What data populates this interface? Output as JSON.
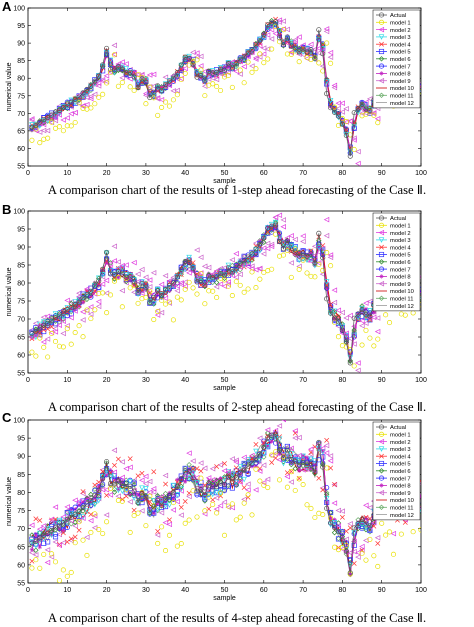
{
  "panels": [
    {
      "letter": "A",
      "caption": "A comparison chart of the results of 1-step ahead forecasting of the Case Ⅱ.",
      "chart_data": {
        "type": "line",
        "xlabel": "sample",
        "ylabel": "numerical value",
        "xlim": [
          0,
          100
        ],
        "ylim": [
          55,
          100
        ],
        "xticks": [
          0,
          10,
          20,
          30,
          40,
          50,
          60,
          70,
          80,
          90,
          100
        ],
        "yticks": [
          55,
          60,
          65,
          70,
          75,
          80,
          85,
          90,
          95,
          100
        ],
        "legend": [
          "Actual",
          "model 1",
          "model 2",
          "model 3",
          "model 4",
          "model 5",
          "model 6",
          "model 7",
          "model 8",
          "model 9",
          "model 10",
          "model 11",
          "model 12"
        ],
        "legend_position": "right",
        "spread": 3,
        "worst_models": [
          1,
          2,
          9
        ]
      }
    },
    {
      "letter": "B",
      "caption": "A comparison chart of the results of 2-step ahead forecasting of the Case Ⅱ.",
      "chart_data": {
        "type": "line",
        "xlabel": "sample",
        "ylabel": "numerical value",
        "xlim": [
          0,
          100
        ],
        "ylim": [
          55,
          100
        ],
        "xticks": [
          0,
          10,
          20,
          30,
          40,
          50,
          60,
          70,
          80,
          90,
          100
        ],
        "yticks": [
          55,
          60,
          65,
          70,
          75,
          80,
          85,
          90,
          95,
          100
        ],
        "legend": [
          "Actual",
          "model 1",
          "model 2",
          "model 3",
          "model 4",
          "model 5",
          "model 6",
          "model 7",
          "model 8",
          "model 9",
          "model 10",
          "model 11",
          "model 12"
        ],
        "legend_position": "right",
        "spread": 5,
        "worst_models": [
          1,
          2,
          9
        ]
      }
    },
    {
      "letter": "C",
      "caption": "A comparison chart of the results of 4-step ahead forecasting of the Case Ⅱ.",
      "chart_data": {
        "type": "line",
        "xlabel": "sample",
        "ylabel": "numerical value",
        "xlim": [
          0,
          100
        ],
        "ylim": [
          55,
          100
        ],
        "xticks": [
          0,
          10,
          20,
          30,
          40,
          50,
          60,
          70,
          80,
          90,
          100
        ],
        "yticks": [
          55,
          60,
          65,
          70,
          75,
          80,
          85,
          90,
          95,
          100
        ],
        "legend": [
          "Actual",
          "model 1",
          "model 2",
          "model 3",
          "model 4",
          "model 5",
          "model 6",
          "model 7",
          "model 8",
          "model 9",
          "model 10",
          "model 11",
          "model 12"
        ],
        "legend_position": "right",
        "spread": 8,
        "worst_models": [
          1,
          2,
          4,
          9
        ]
      }
    }
  ],
  "actual_series": [
    66,
    66.5,
    67.5,
    68.2,
    68.8,
    69.5,
    70.4,
    70.8,
    71.6,
    72.6,
    73.1,
    74,
    74.6,
    75.8,
    76.8,
    77.7,
    79.2,
    80.6,
    83.8,
    88.5,
    82.5,
    82.3,
    83.2,
    82.5,
    81.6,
    81.7,
    80.4,
    77.3,
    79.8,
    78.8,
    74.5,
    76,
    77.8,
    76.5,
    78.2,
    79.2,
    80,
    81.6,
    83.8,
    86,
    85.7,
    84,
    80.3,
    80.8,
    79.4,
    82,
    81.5,
    81.6,
    82.6,
    82.2,
    84.2,
    83.1,
    84.1,
    85.5,
    86.1,
    87.2,
    88.1,
    89.5,
    90.7,
    92.5,
    95.2,
    95.8,
    96.1,
    91.5,
    89.5,
    91.7,
    89.1,
    88.6,
    87.5,
    88.3,
    87.4,
    88.1,
    85.6,
    93.8,
    87,
    75.6,
    71.6,
    70.3,
    69.2,
    66.9,
    63.7,
    57.8,
    70.2,
    71.4,
    72.6,
    71.2,
    70.8,
    73.8,
    76.6,
    77.5,
    75.2,
    78.4,
    78.5,
    78.3,
    80.1,
    79.2,
    78.1,
    77.3,
    77.9,
    76.5
  ],
  "series_styles": [
    {
      "name": "Actual",
      "color": "#555555",
      "marker": "circle"
    },
    {
      "name": "model 1",
      "color": "#e8e000",
      "marker": "circle"
    },
    {
      "name": "model 2",
      "color": "#e03fe0",
      "marker": "triangle-left"
    },
    {
      "name": "model 3",
      "color": "#30d9e8",
      "marker": "triangle-down"
    },
    {
      "name": "model 4",
      "color": "#ff3333",
      "marker": "x"
    },
    {
      "name": "model 5",
      "color": "#3030ff",
      "marker": "square"
    },
    {
      "name": "model 6",
      "color": "#2e8b2e",
      "marker": "diamond"
    },
    {
      "name": "model 7",
      "color": "#2020ff",
      "marker": "circle"
    },
    {
      "name": "model 8",
      "color": "#c020c0",
      "marker": "star"
    },
    {
      "name": "model 9",
      "color": "#cc66cc",
      "marker": "triangle-left"
    },
    {
      "name": "model 10",
      "color": "#cc0000",
      "marker": "line"
    },
    {
      "name": "model 11",
      "color": "#66aa66",
      "marker": "diamond"
    },
    {
      "name": "model 12",
      "color": "#999999",
      "marker": "line"
    }
  ]
}
